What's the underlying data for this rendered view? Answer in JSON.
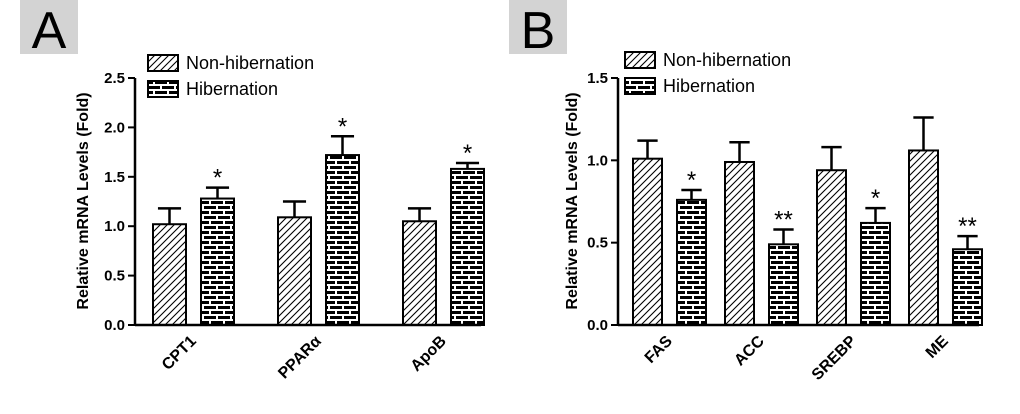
{
  "chart_data": [
    {
      "panel": "A",
      "type": "bar",
      "title": "",
      "xlabel": "",
      "ylabel": "Relative mRNA Levels (Fold)",
      "ylim": [
        0,
        2.5
      ],
      "yticks": [
        "0.0",
        "0.5",
        "1.0",
        "1.5",
        "2.0",
        "2.5"
      ],
      "categories": [
        "CPT1",
        "PPARα",
        "ApoB"
      ],
      "legend_position": "top-left",
      "series": [
        {
          "name": "Non-hibernation",
          "pattern": "diagonal-hatch",
          "values": [
            1.02,
            1.09,
            1.05
          ],
          "errors": [
            0.16,
            0.16,
            0.13
          ],
          "significance": [
            "",
            "",
            ""
          ]
        },
        {
          "name": "Hibernation",
          "pattern": "brick",
          "values": [
            1.28,
            1.72,
            1.58
          ],
          "errors": [
            0.11,
            0.19,
            0.06
          ],
          "significance": [
            "*",
            "*",
            "*"
          ]
        }
      ]
    },
    {
      "panel": "B",
      "type": "bar",
      "title": "",
      "xlabel": "",
      "ylabel": "Relative mRNA Levels (Fold)",
      "ylim": [
        0,
        1.5
      ],
      "yticks": [
        "0.0",
        "0.5",
        "1.0",
        "1.5"
      ],
      "categories": [
        "FAS",
        "ACC",
        "SREBP",
        "ME"
      ],
      "legend_position": "top-left",
      "series": [
        {
          "name": "Non-hibernation",
          "pattern": "diagonal-hatch",
          "values": [
            1.01,
            0.99,
            0.94,
            1.06
          ],
          "errors": [
            0.11,
            0.12,
            0.14,
            0.2
          ],
          "significance": [
            "",
            "",
            "",
            ""
          ]
        },
        {
          "name": "Hibernation",
          "pattern": "brick",
          "values": [
            0.76,
            0.49,
            0.62,
            0.46
          ],
          "errors": [
            0.06,
            0.09,
            0.09,
            0.08
          ],
          "significance": [
            "*",
            "**",
            "*",
            "**"
          ]
        }
      ]
    }
  ],
  "colors": {
    "bar_fill": "#ffffff",
    "stroke": "#000000",
    "panel_label_bg": "#d3d3d3"
  }
}
